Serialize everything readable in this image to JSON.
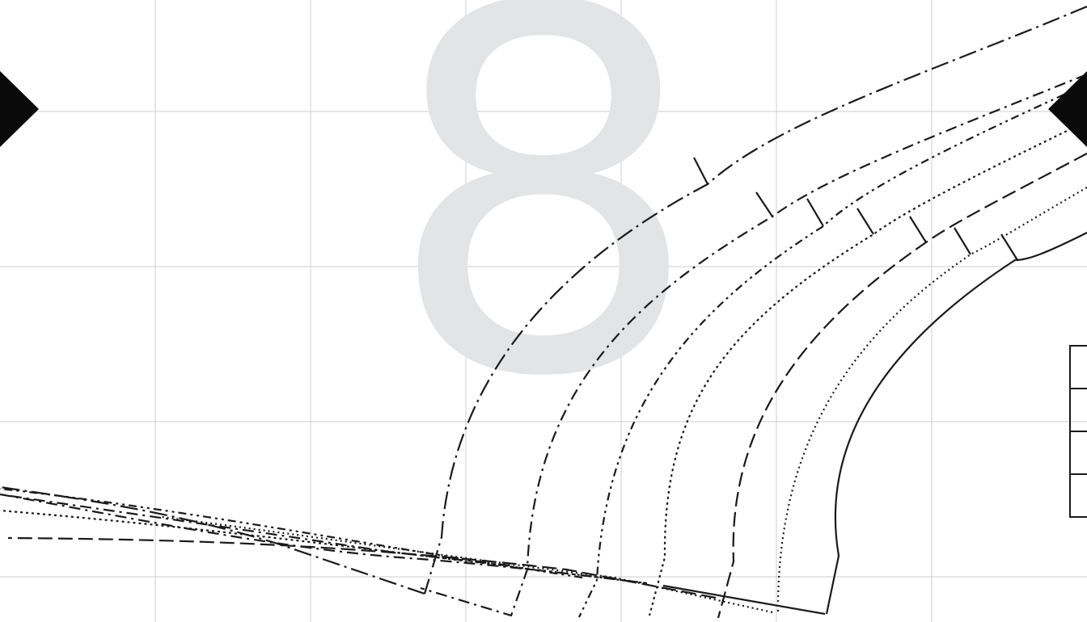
{
  "page": {
    "number": "8",
    "background": "#ffffff",
    "grid_color": "#cfcfcf",
    "line_color": "#1a1a1a",
    "watermark_color": "#e3e4e6"
  },
  "pattern": {
    "size_lines": [
      {
        "id": "size-1",
        "style": "long-dash-dot"
      },
      {
        "id": "size-2",
        "style": "dash-dot"
      },
      {
        "id": "size-3",
        "style": "dash-dot-dot"
      },
      {
        "id": "size-4",
        "style": "dotted"
      },
      {
        "id": "size-5",
        "style": "long-dash"
      },
      {
        "id": "size-6",
        "style": "fine-dotted"
      },
      {
        "id": "size-7",
        "style": "solid"
      }
    ],
    "markers": [
      "left-notch-marker",
      "right-notch-marker",
      "scale-check-box"
    ]
  }
}
